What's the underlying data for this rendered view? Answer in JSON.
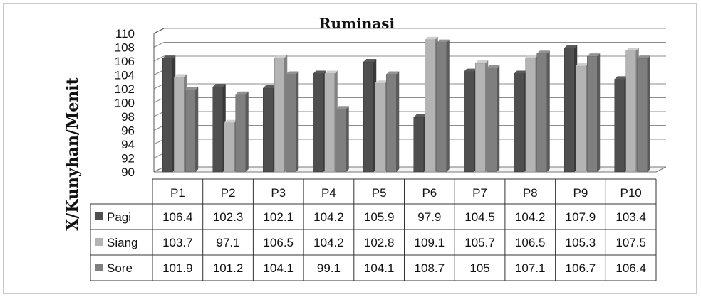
{
  "chart_data": {
    "type": "bar",
    "title": "Ruminasi",
    "xlabel": "",
    "ylabel": "X/Kunyhan/Menit",
    "ylim": [
      90,
      110
    ],
    "yticks": [
      90,
      92,
      94,
      96,
      98,
      100,
      102,
      104,
      106,
      108,
      110
    ],
    "grid": true,
    "legend": "data-table",
    "categories": [
      "P1",
      "P2",
      "P3",
      "P4",
      "P5",
      "P6",
      "P7",
      "P8",
      "P9",
      "P10"
    ],
    "series": [
      {
        "name": "Pagi",
        "color": "#4f4f4f",
        "values": [
          106.4,
          102.3,
          102.1,
          104.2,
          105.9,
          97.9,
          104.5,
          104.2,
          107.9,
          103.4
        ]
      },
      {
        "name": "Siang",
        "color": "#b4b4b4",
        "values": [
          103.7,
          97.1,
          106.5,
          104.2,
          102.8,
          109.1,
          105.7,
          106.5,
          105.3,
          107.5
        ]
      },
      {
        "name": "Sore",
        "color": "#7f7f7f",
        "values": [
          101.9,
          101.2,
          104.1,
          99.1,
          104.1,
          108.7,
          105,
          107.1,
          106.7,
          106.4
        ]
      }
    ]
  }
}
